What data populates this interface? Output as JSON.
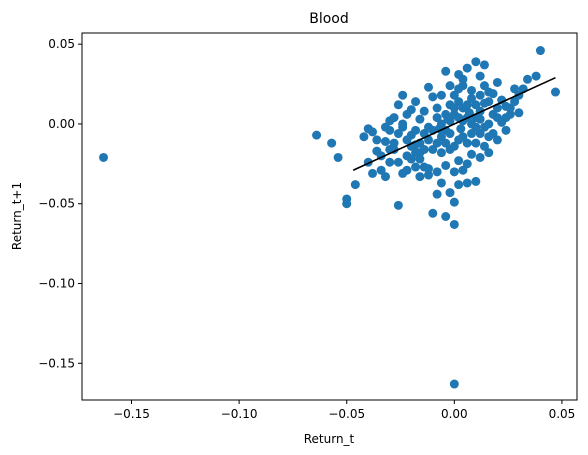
{
  "chart_data": {
    "type": "scatter",
    "title": "Blood",
    "xlabel": "Return_t",
    "ylabel": "Return_t+1",
    "xlim": [
      -0.173,
      0.057
    ],
    "ylim": [
      -0.173,
      0.057
    ],
    "xticks": [
      {
        "value": -0.15,
        "label": "−0.15"
      },
      {
        "value": -0.1,
        "label": "−0.10"
      },
      {
        "value": -0.05,
        "label": "−0.05"
      },
      {
        "value": 0.0,
        "label": "0.00"
      },
      {
        "value": 0.05,
        "label": "0.05"
      }
    ],
    "yticks": [
      {
        "value": 0.05,
        "label": "0.05"
      },
      {
        "value": 0.0,
        "label": "0.00"
      },
      {
        "value": -0.05,
        "label": "−0.05"
      },
      {
        "value": -0.1,
        "label": "−0.10"
      },
      {
        "value": -0.15,
        "label": "−0.15"
      }
    ],
    "grid": false,
    "point_color": "#1f77b4",
    "line_color": "#000000",
    "fit_line": {
      "x": [
        -0.047,
        0.047
      ],
      "y": [
        -0.029,
        0.029
      ]
    },
    "points": [
      [
        -0.163,
        -0.021
      ],
      [
        0.0,
        -0.163
      ],
      [
        0.0,
        -0.063
      ],
      [
        -0.064,
        -0.007
      ],
      [
        -0.057,
        -0.012
      ],
      [
        -0.054,
        -0.021
      ],
      [
        -0.05,
        -0.047
      ],
      [
        -0.05,
        -0.05
      ],
      [
        -0.046,
        -0.038
      ],
      [
        -0.04,
        -0.003
      ],
      [
        -0.038,
        -0.005
      ],
      [
        -0.036,
        -0.017
      ],
      [
        -0.034,
        -0.029
      ],
      [
        -0.032,
        -0.033
      ],
      [
        -0.03,
        -0.024
      ],
      [
        -0.028,
        -0.016
      ],
      [
        -0.026,
        -0.051
      ],
      [
        -0.022,
        -0.029
      ],
      [
        -0.02,
        -0.007
      ],
      [
        -0.018,
        -0.013
      ],
      [
        -0.016,
        -0.018
      ],
      [
        -0.014,
        -0.027
      ],
      [
        -0.012,
        -0.032
      ],
      [
        -0.01,
        -0.056
      ],
      [
        -0.008,
        -0.044
      ],
      [
        -0.006,
        -0.037
      ],
      [
        -0.004,
        -0.058
      ],
      [
        -0.002,
        -0.043
      ],
      [
        0.0,
        -0.049
      ],
      [
        0.002,
        -0.038
      ],
      [
        0.004,
        -0.029
      ],
      [
        0.006,
        -0.037
      ],
      [
        0.01,
        -0.036
      ],
      [
        0.012,
        -0.021
      ],
      [
        0.014,
        -0.014
      ],
      [
        0.016,
        -0.018
      ],
      [
        0.018,
        -0.006
      ],
      [
        0.02,
        -0.01
      ],
      [
        0.022,
        0.001
      ],
      [
        0.024,
        0.004
      ],
      [
        0.026,
        0.01
      ],
      [
        0.028,
        0.014
      ],
      [
        0.03,
        0.018
      ],
      [
        0.032,
        0.022
      ],
      [
        0.034,
        0.028
      ],
      [
        0.038,
        0.03
      ],
      [
        0.04,
        0.046
      ],
      [
        0.047,
        0.02
      ],
      [
        0.03,
        0.007
      ],
      [
        0.024,
        -0.004
      ],
      [
        0.02,
        0.026
      ],
      [
        0.014,
        0.037
      ],
      [
        0.012,
        0.03
      ],
      [
        0.01,
        0.039
      ],
      [
        0.008,
        0.021
      ],
      [
        0.006,
        0.035
      ],
      [
        0.004,
        0.024
      ],
      [
        0.002,
        0.031
      ],
      [
        -0.002,
        0.024
      ],
      [
        -0.004,
        0.033
      ],
      [
        -0.006,
        0.018
      ],
      [
        -0.008,
        0.01
      ],
      [
        -0.01,
        0.017
      ],
      [
        -0.012,
        0.023
      ],
      [
        -0.014,
        0.008
      ],
      [
        -0.016,
        0.003
      ],
      [
        -0.018,
        0.014
      ],
      [
        -0.02,
        0.009
      ],
      [
        -0.022,
        0.006
      ],
      [
        -0.024,
        0.018
      ],
      [
        -0.026,
        0.012
      ],
      [
        -0.028,
        0.004
      ],
      [
        -0.03,
        -0.004
      ],
      [
        -0.032,
        -0.011
      ],
      [
        -0.036,
        -0.01
      ],
      [
        -0.042,
        -0.008
      ],
      [
        -0.04,
        -0.024
      ],
      [
        -0.038,
        -0.031
      ],
      [
        -0.034,
        -0.02
      ],
      [
        -0.03,
        -0.016
      ],
      [
        -0.026,
        -0.024
      ],
      [
        -0.024,
        -0.031
      ],
      [
        -0.022,
        -0.02
      ],
      [
        -0.018,
        -0.027
      ],
      [
        -0.016,
        -0.033
      ],
      [
        -0.012,
        -0.028
      ],
      [
        -0.008,
        -0.03
      ],
      [
        -0.004,
        -0.026
      ],
      [
        0.0,
        -0.03
      ],
      [
        0.002,
        -0.023
      ],
      [
        0.006,
        -0.025
      ],
      [
        0.008,
        -0.019
      ],
      [
        0.01,
        -0.012
      ],
      [
        0.012,
        -0.006
      ],
      [
        0.016,
        0.0
      ],
      [
        0.018,
        0.006
      ],
      [
        0.02,
        0.01
      ],
      [
        0.022,
        0.015
      ],
      [
        0.024,
        0.011
      ],
      [
        0.026,
        0.006
      ],
      [
        0.028,
        0.022
      ],
      [
        0.016,
        0.02
      ],
      [
        0.014,
        0.013
      ],
      [
        0.012,
        0.008
      ],
      [
        0.01,
        0.004
      ],
      [
        0.008,
        0.0
      ],
      [
        0.006,
        0.004
      ],
      [
        0.004,
        0.01
      ],
      [
        0.002,
        0.014
      ],
      [
        0.0,
        0.006
      ],
      [
        -0.002,
        0.002
      ],
      [
        -0.004,
        -0.004
      ],
      [
        -0.006,
        -0.008
      ],
      [
        -0.008,
        -0.012
      ],
      [
        -0.01,
        -0.016
      ],
      [
        -0.012,
        -0.01
      ],
      [
        -0.014,
        -0.006
      ],
      [
        -0.016,
        -0.012
      ],
      [
        -0.018,
        -0.004
      ],
      [
        -0.02,
        -0.014
      ],
      [
        -0.022,
        -0.01
      ],
      [
        -0.024,
        -0.002
      ],
      [
        -0.026,
        -0.006
      ],
      [
        -0.028,
        -0.012
      ],
      [
        0.002,
        0.004
      ],
      [
        0.004,
        0.002
      ],
      [
        -0.002,
        -0.006
      ],
      [
        -0.004,
        0.006
      ],
      [
        0.006,
        0.012
      ],
      [
        0.008,
        0.016
      ],
      [
        0.01,
        0.012
      ],
      [
        -0.006,
        0.0
      ],
      [
        -0.008,
        0.004
      ],
      [
        -0.01,
        -0.004
      ],
      [
        -0.012,
        -0.002
      ],
      [
        -0.014,
        -0.016
      ],
      [
        -0.016,
        -0.022
      ],
      [
        -0.018,
        -0.018
      ],
      [
        -0.02,
        -0.022
      ],
      [
        0.012,
        0.018
      ],
      [
        0.014,
        0.024
      ],
      [
        0.016,
        0.014
      ],
      [
        0.018,
        0.019
      ],
      [
        0.02,
        0.004
      ],
      [
        0.004,
        -0.008
      ],
      [
        0.006,
        -0.012
      ],
      [
        0.008,
        -0.006
      ],
      [
        0.01,
        -0.002
      ],
      [
        0.0,
        -0.014
      ],
      [
        0.002,
        -0.01
      ],
      [
        -0.002,
        -0.016
      ],
      [
        -0.004,
        -0.012
      ],
      [
        -0.006,
        -0.018
      ],
      [
        0.0,
        0.018
      ],
      [
        -0.002,
        0.012
      ],
      [
        0.002,
        0.022
      ],
      [
        0.004,
        0.028
      ],
      [
        0.012,
        0.003
      ],
      [
        0.014,
        -0.002
      ],
      [
        0.016,
        -0.008
      ],
      [
        -0.024,
        0.0
      ],
      [
        -0.03,
        0.002
      ],
      [
        -0.032,
        -0.002
      ],
      [
        0.0,
        0.01
      ],
      [
        0.003,
        -0.003
      ],
      [
        -0.003,
        0.003
      ],
      [
        0.007,
        0.007
      ],
      [
        -0.007,
        -0.003
      ]
    ]
  }
}
